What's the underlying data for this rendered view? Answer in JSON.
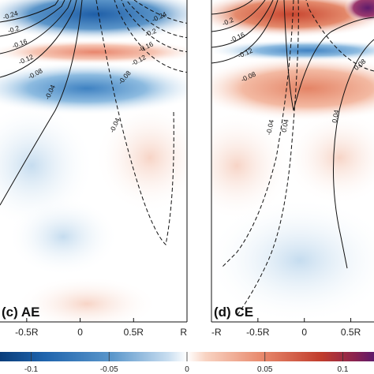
{
  "chart_data": [
    {
      "type": "heatmap",
      "panel_label": "(c) AE",
      "x_ticks": [
        "-0.5R",
        "0",
        "0.5R",
        "R"
      ],
      "x_tick_values": [
        -0.5,
        0,
        0.5,
        1
      ],
      "xlim": [
        -0.75,
        1
      ],
      "contour_labels": [
        {
          "text": "-0.24",
          "value": -0.24
        },
        {
          "text": "-0.2",
          "value": -0.2
        },
        {
          "text": "-0.16",
          "value": -0.16
        },
        {
          "text": "-0.12",
          "value": -0.12
        },
        {
          "text": "-0.08",
          "value": -0.08
        },
        {
          "text": "-0.04",
          "value": -0.04
        },
        {
          "text": "-0.24",
          "value": -0.24
        },
        {
          "text": "-0.2",
          "value": -0.2
        },
        {
          "text": "-0.16",
          "value": -0.16
        },
        {
          "text": "-0.12",
          "value": -0.12
        },
        {
          "text": "-0.08",
          "value": -0.08
        },
        {
          "text": "-0.04",
          "value": -0.04
        }
      ]
    },
    {
      "type": "heatmap",
      "panel_label": "(d) CE",
      "x_ticks": [
        "-R",
        "-0.5R",
        "0",
        "0.5R"
      ],
      "x_tick_values": [
        -1,
        -0.5,
        0,
        0.5
      ],
      "xlim": [
        -1,
        0.75
      ],
      "contour_labels": [
        {
          "text": "-0.2",
          "value": -0.2
        },
        {
          "text": "-0.16",
          "value": -0.16
        },
        {
          "text": "-0.12",
          "value": -0.12
        },
        {
          "text": "-0.08",
          "value": -0.08
        },
        {
          "text": "-0.04",
          "value": -0.04
        },
        {
          "text": "0.04",
          "value": 0.04
        },
        {
          "text": "0.04",
          "value": 0.04
        },
        {
          "text": "0.08",
          "value": 0.08
        }
      ]
    }
  ],
  "colorbar": {
    "ticks": [
      "-0.1",
      "-0.05",
      "0",
      "0.05",
      "0.1"
    ],
    "tick_values": [
      -0.1,
      -0.05,
      0,
      0.05,
      0.1
    ],
    "range": [
      -0.12,
      0.12
    ],
    "colors": {
      "negative": "#2166ac",
      "zero": "#ffffff",
      "positive": "#b2182b",
      "max": "#5e1b6b"
    }
  }
}
